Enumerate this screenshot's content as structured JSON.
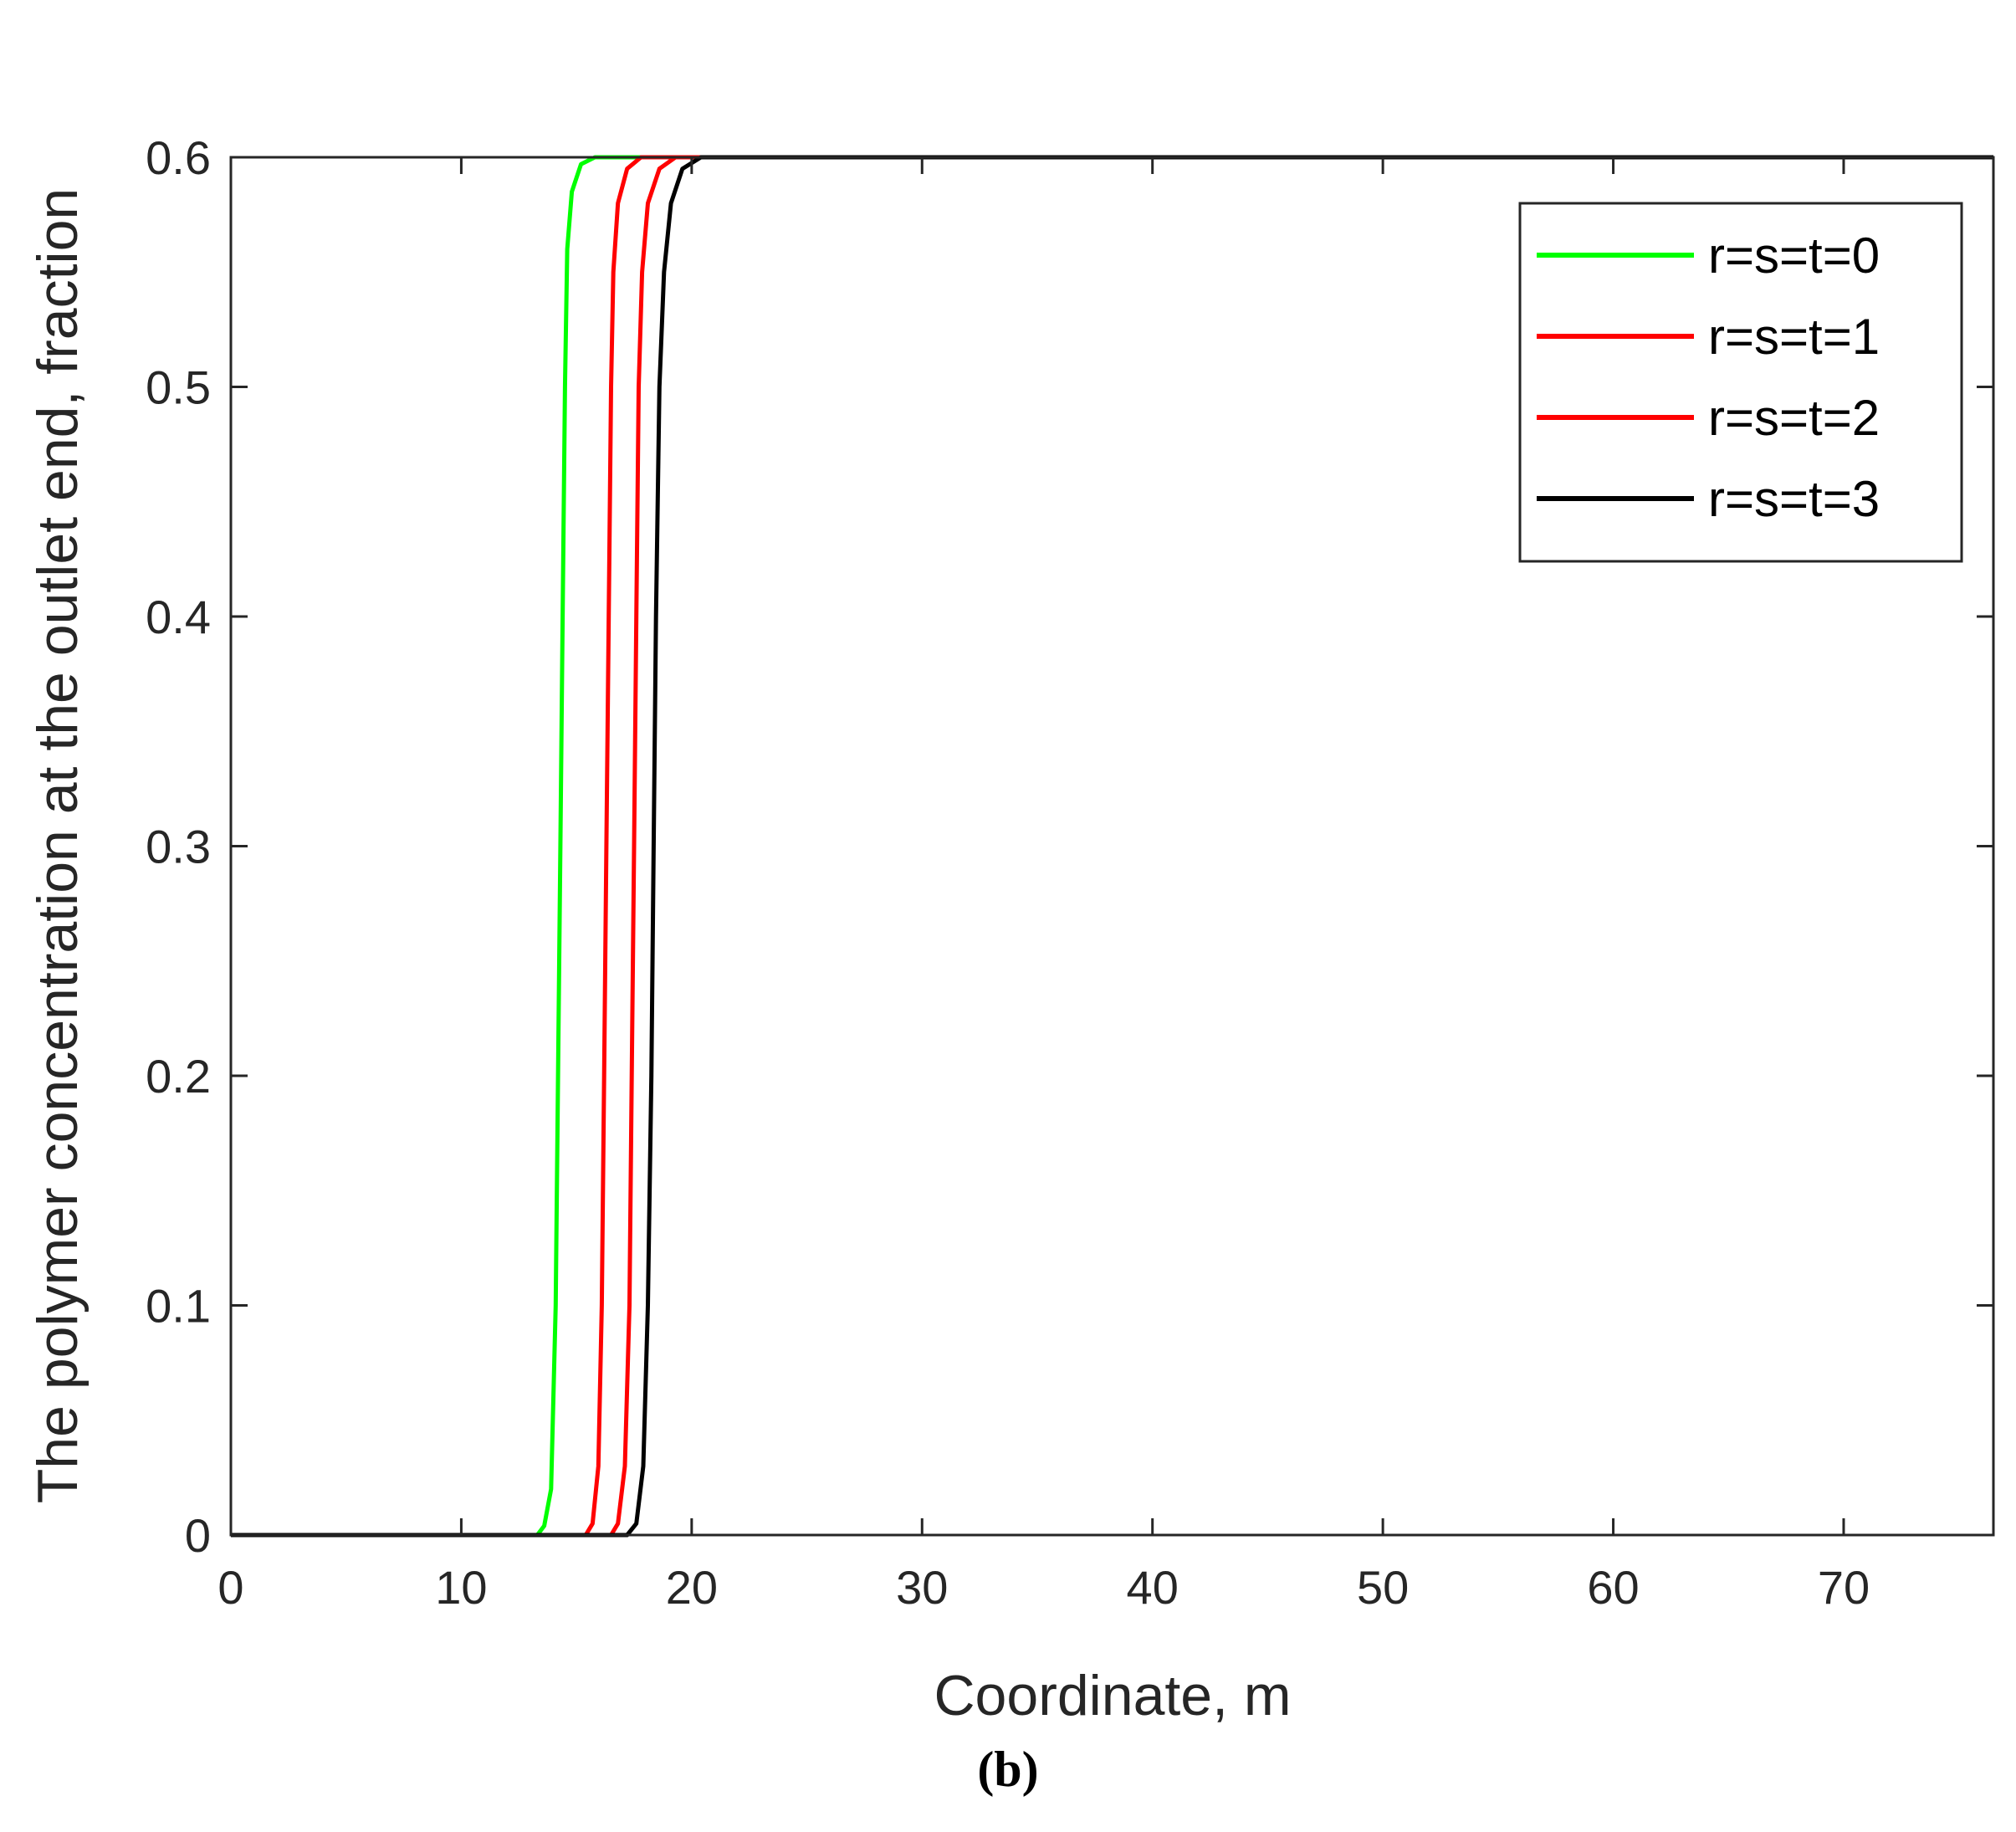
{
  "chart_data": {
    "type": "line",
    "title": "",
    "xlabel": "Coordinate, m",
    "ylabel": "The polymer concentration at the outlet end, fraction",
    "caption": "(b)",
    "xlim": [
      0,
      76.5
    ],
    "ylim": [
      0,
      0.6
    ],
    "xticks": [
      "0",
      "10",
      "20",
      "30",
      "40",
      "50",
      "60",
      "70"
    ],
    "yticks": [
      "0",
      "0.1",
      "0.2",
      "0.3",
      "0.4",
      "0.5",
      "0.6"
    ],
    "grid": false,
    "legend_position": "top-right",
    "series": [
      {
        "name": "r=s=t=0",
        "color": "#00ff00",
        "points": [
          [
            0,
            0
          ],
          [
            13.3,
            0
          ],
          [
            13.6,
            0.004
          ],
          [
            13.9,
            0.02
          ],
          [
            14.1,
            0.1
          ],
          [
            14.2,
            0.2
          ],
          [
            14.3,
            0.3
          ],
          [
            14.4,
            0.4
          ],
          [
            14.5,
            0.5
          ],
          [
            14.6,
            0.56
          ],
          [
            14.8,
            0.585
          ],
          [
            15.2,
            0.597
          ],
          [
            15.8,
            0.6
          ],
          [
            76.5,
            0.6
          ]
        ]
      },
      {
        "name": "r=s=t=1",
        "color": "#ff0000",
        "points": [
          [
            0,
            0
          ],
          [
            15.4,
            0
          ],
          [
            15.7,
            0.005
          ],
          [
            15.95,
            0.03
          ],
          [
            16.1,
            0.1
          ],
          [
            16.2,
            0.2
          ],
          [
            16.3,
            0.3
          ],
          [
            16.4,
            0.4
          ],
          [
            16.5,
            0.5
          ],
          [
            16.6,
            0.55
          ],
          [
            16.8,
            0.58
          ],
          [
            17.2,
            0.595
          ],
          [
            17.8,
            0.6
          ],
          [
            76.5,
            0.6
          ]
        ]
      },
      {
        "name": "r=s=t=2",
        "color": "#ff0000",
        "points": [
          [
            0,
            0
          ],
          [
            16.5,
            0
          ],
          [
            16.8,
            0.005
          ],
          [
            17.1,
            0.03
          ],
          [
            17.3,
            0.1
          ],
          [
            17.4,
            0.2
          ],
          [
            17.5,
            0.3
          ],
          [
            17.6,
            0.4
          ],
          [
            17.7,
            0.5
          ],
          [
            17.85,
            0.55
          ],
          [
            18.1,
            0.58
          ],
          [
            18.6,
            0.595
          ],
          [
            19.3,
            0.6
          ],
          [
            76.5,
            0.6
          ]
        ]
      },
      {
        "name": "r=s=t=3",
        "color": "#000000",
        "points": [
          [
            0,
            0
          ],
          [
            17.2,
            0
          ],
          [
            17.6,
            0.005
          ],
          [
            17.9,
            0.03
          ],
          [
            18.1,
            0.1
          ],
          [
            18.25,
            0.2
          ],
          [
            18.35,
            0.3
          ],
          [
            18.45,
            0.4
          ],
          [
            18.6,
            0.5
          ],
          [
            18.8,
            0.55
          ],
          [
            19.1,
            0.58
          ],
          [
            19.6,
            0.595
          ],
          [
            20.4,
            0.6
          ],
          [
            76.5,
            0.6
          ]
        ]
      }
    ]
  }
}
